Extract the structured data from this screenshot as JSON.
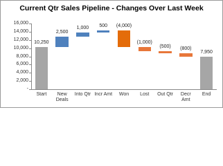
{
  "chart_data": {
    "type": "waterfall",
    "title": "Current Qtr Sales Pipeline - Changes Over Last Week",
    "categories": [
      "Start",
      "New Deals",
      "Into Qtr",
      "Incr Amt",
      "Won",
      "Lost",
      "Out Qtr",
      "Decr Amt",
      "End"
    ],
    "values": [
      10250,
      2500,
      1000,
      500,
      -4000,
      -1000,
      -500,
      -800,
      7950
    ],
    "value_labels": [
      "10,250",
      "2,500",
      "1,000",
      "500",
      "(4,000)",
      "(1,000)",
      "(500)",
      "(800)",
      "7,950"
    ],
    "totals": [
      0,
      8
    ],
    "colors": [
      "#a6a6a6",
      "#4f81bd",
      "#4f81bd",
      "#4f81bd",
      "#e46c0a",
      "#e8773a",
      "#e8773a",
      "#e8773a",
      "#a6a6a6"
    ],
    "ylim": [
      0,
      16000
    ],
    "yticks": [
      {
        "value": 0,
        "label": "-"
      },
      {
        "value": 2000,
        "label": "2,000"
      },
      {
        "value": 4000,
        "label": "4,000"
      },
      {
        "value": 6000,
        "label": "6,000"
      },
      {
        "value": 8000,
        "label": "8,000"
      },
      {
        "value": 10000,
        "label": "10,000"
      },
      {
        "value": 12000,
        "label": "12,000"
      },
      {
        "value": 14000,
        "label": "14,000"
      },
      {
        "value": 16000,
        "label": "16,000"
      }
    ]
  }
}
